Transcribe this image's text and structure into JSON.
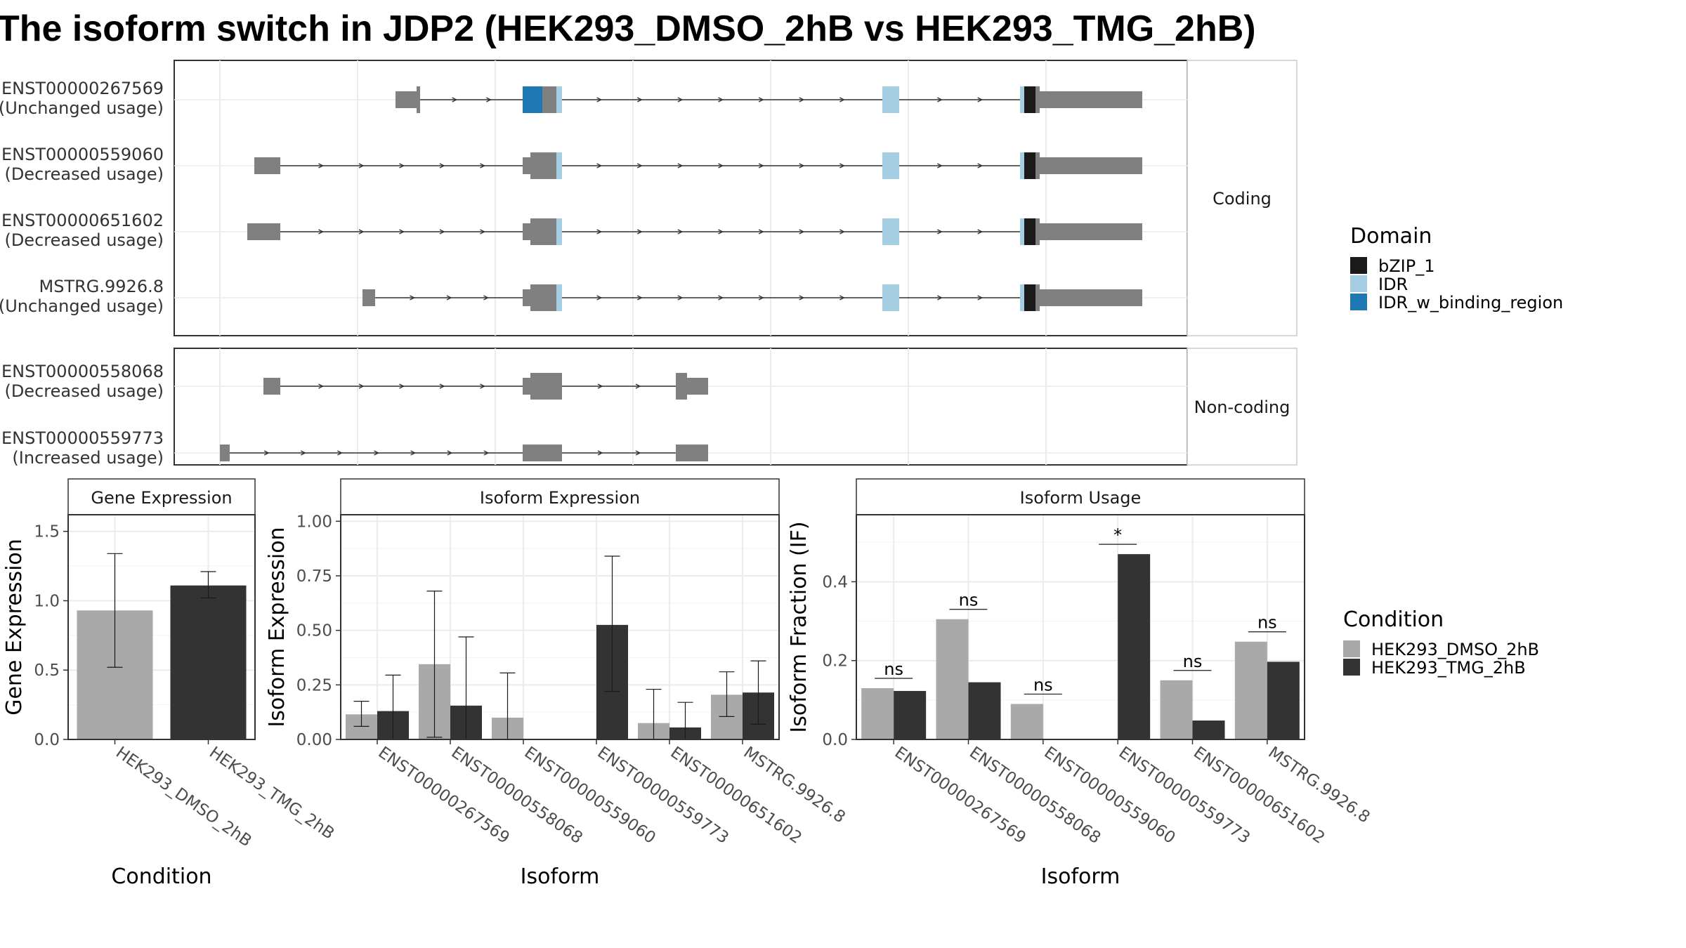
{
  "title": "The isoform switch in JDP2 (HEK293_DMSO_2hB vs HEK293_TMG_2hB)",
  "colors": {
    "exon": "#808080",
    "bZIP_1": "#1a1a1a",
    "IDR": "#a6cee3",
    "IDR_w_binding_region": "#1f78b4",
    "dmso": "#a9a9a9",
    "tmg": "#333333",
    "grid": "#ebebeb",
    "border": "#333333",
    "strip_border": "#cccccc"
  },
  "structure": {
    "panels": [
      {
        "label": "Coding",
        "transcripts": [
          {
            "id": "ENST00000267569",
            "usage": "(Unchanged usage)"
          },
          {
            "id": "ENST00000559060",
            "usage": "(Decreased usage)"
          },
          {
            "id": "ENST00000651602",
            "usage": "(Decreased usage)"
          },
          {
            "id": "MSTRG.9926.8",
            "usage": "(Unchanged usage)"
          }
        ]
      },
      {
        "label": "Non-coding",
        "transcripts": [
          {
            "id": "ENST00000558068",
            "usage": "(Decreased usage)"
          },
          {
            "id": "ENST00000559773",
            "usage": "(Increased usage)"
          }
        ]
      }
    ]
  },
  "legend_domain": {
    "title": "Domain",
    "items": [
      {
        "label": "bZIP_1",
        "color": "#1a1a1a"
      },
      {
        "label": "IDR",
        "color": "#a6cee3"
      },
      {
        "label": "IDR_w_binding_region",
        "color": "#1f78b4"
      }
    ]
  },
  "legend_condition": {
    "title": "Condition",
    "items": [
      {
        "label": "HEK293_DMSO_2hB",
        "color": "#a9a9a9"
      },
      {
        "label": "HEK293_TMG_2hB",
        "color": "#333333"
      }
    ]
  },
  "chart_data": [
    {
      "type": "bar",
      "title": "Gene Expression",
      "xlabel": "Condition",
      "ylabel": "Gene Expression",
      "ylim": [
        0,
        1.62
      ],
      "yticks": [
        0.0,
        0.5,
        1.0,
        1.5
      ],
      "ytick_labels": [
        "0.0",
        "0.5",
        "1.0",
        "1.5"
      ],
      "categories": [
        "HEK293_DMSO_2hB",
        "HEK293_TMG_2hB"
      ],
      "values": [
        0.93,
        1.11
      ],
      "errors": [
        [
          0.52,
          1.34
        ],
        [
          1.02,
          1.21
        ]
      ]
    },
    {
      "type": "bar",
      "title": "Isoform Expression",
      "xlabel": "Isoform",
      "ylabel": "Isoform Expression",
      "ylim": [
        0,
        1.03
      ],
      "yticks": [
        0.0,
        0.25,
        0.5,
        0.75,
        1.0
      ],
      "ytick_labels": [
        "0.00",
        "0.25",
        "0.50",
        "0.75",
        "1.00"
      ],
      "categories": [
        "ENST00000267569",
        "ENST00000558068",
        "ENST00000559060",
        "ENST00000559773",
        "ENST00000651602",
        "MSTRG.9926.8"
      ],
      "series": [
        {
          "name": "HEK293_DMSO_2hB",
          "values": [
            0.115,
            0.345,
            0.1,
            0.0,
            0.075,
            0.205
          ],
          "errors": [
            [
              0.06,
              0.175
            ],
            [
              0.01,
              0.68
            ],
            [
              0.0,
              0.305
            ],
            [
              0.0,
              0.0
            ],
            [
              0.0,
              0.23
            ],
            [
              0.105,
              0.31
            ]
          ]
        },
        {
          "name": "HEK293_TMG_2hB",
          "values": [
            0.13,
            0.155,
            0.0,
            0.525,
            0.055,
            0.215
          ],
          "errors": [
            [
              0.0,
              0.295
            ],
            [
              0.0,
              0.47
            ],
            [
              0.0,
              0.0
            ],
            [
              0.22,
              0.84
            ],
            [
              0.0,
              0.17
            ],
            [
              0.07,
              0.36
            ]
          ]
        }
      ]
    },
    {
      "type": "bar",
      "title": "Isoform Usage",
      "xlabel": "Isoform",
      "ylabel": "Isoform Fraction (IF)",
      "ylim": [
        0,
        0.57
      ],
      "yticks": [
        0.0,
        0.2,
        0.4
      ],
      "ytick_labels": [
        "0.0",
        "0.2",
        "0.4"
      ],
      "categories": [
        "ENST00000267569",
        "ENST00000558068",
        "ENST00000559060",
        "ENST00000559773",
        "ENST00000651602",
        "MSTRG.9926.8"
      ],
      "series": [
        {
          "name": "HEK293_DMSO_2hB",
          "values": [
            0.13,
            0.305,
            0.09,
            0.0,
            0.15,
            0.248
          ]
        },
        {
          "name": "HEK293_TMG_2hB",
          "values": [
            0.123,
            0.145,
            0.0,
            0.47,
            0.048,
            0.197
          ]
        }
      ],
      "significance": [
        "ns",
        "ns",
        "ns",
        "*",
        "ns",
        "ns"
      ],
      "significance_y": [
        0.155,
        0.33,
        0.115,
        0.495,
        0.175,
        0.273
      ]
    }
  ]
}
